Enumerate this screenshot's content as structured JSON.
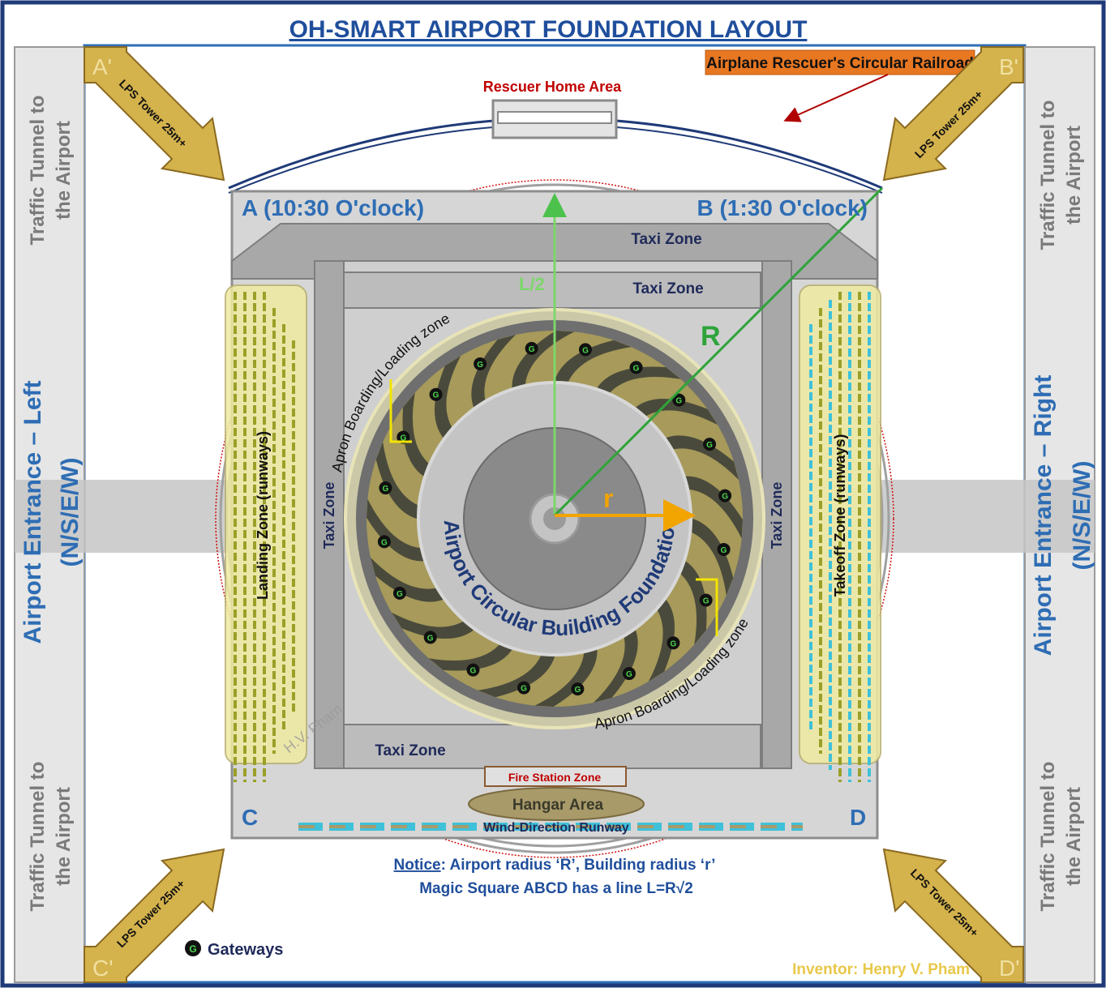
{
  "title": "OH-SMART AIRPORT FOUNDATION LAYOUT",
  "railroad_label": "Airplane Rescuer's Circular Railroad",
  "rescuer_home": "Rescuer Home Area",
  "towers": {
    "a_prime": "A'",
    "b_prime": "B'",
    "c_prime": "C'",
    "d_prime": "D'",
    "label": "LPS Tower 25m+"
  },
  "corners": {
    "a": "A (10:30 O'clock)",
    "b": "B (1:30 O'clock)",
    "c": "C",
    "d": "D"
  },
  "tunnels": {
    "line1": "Traffic Tunnel to",
    "line2": "the Airport"
  },
  "entrances": {
    "left_line1": "Airport  Entrance – Left",
    "right_line1": "Airport  Entrance – Right",
    "dir": "(N/S/E/W)"
  },
  "zones": {
    "taxi": "Taxi Zone",
    "landing": "Landing Zone (runways)",
    "takeoff": "Takeoff  Zone (runways)",
    "apron": "Apron Boarding/Loading zone",
    "building": "Airport Circular Building Foundation",
    "fire": "Fire Station Zone",
    "hangar": "Hangar Area",
    "wind_runway": "Wind-Direction Runway"
  },
  "geometry_labels": {
    "half_l": "L/2",
    "big_r": "R",
    "small_r": "r"
  },
  "gateway_glyph": "G",
  "notice": {
    "prefix": "Notice",
    "line1_rest": ": Airport radius ‘R’, Building radius ‘r’",
    "line2": "Magic Square ABCD has a line L=R√2"
  },
  "legend": {
    "gateways": "Gateways"
  },
  "inventor": "Inventor: Henry V. Pham",
  "watermark": "H.V. Pham",
  "colors": {
    "title_blue": "#1f4e9c",
    "label_blue": "#2e6db4",
    "zone_navy": "#1f2a5a",
    "railroad_orange": "#e87722",
    "tower_gold": "#d4b24c",
    "runway_yellow": "#c9c431",
    "runway_cyan": "#3fc1d9",
    "radius_green": "#2ea43a",
    "r_orange": "#f2a400",
    "fire_red": "#c00000"
  }
}
